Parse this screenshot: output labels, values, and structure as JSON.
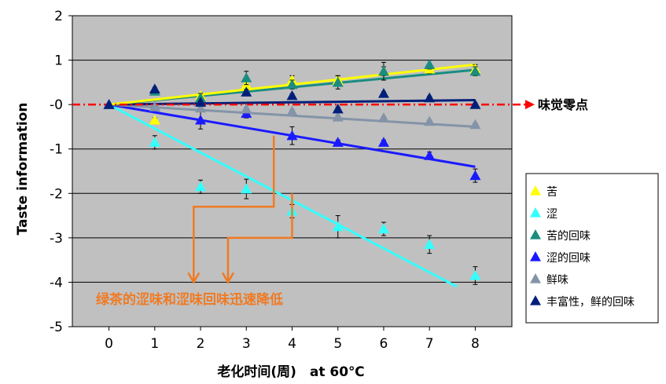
{
  "chart_data": {
    "type": "scatter",
    "ylabel": "Taste information",
    "xlabel": "老化时间(周)　at 60℃",
    "x_ticks": [
      "0",
      "1",
      "2",
      "3",
      "4",
      "5",
      "6",
      "7",
      "8"
    ],
    "y_ticks": [
      "2",
      "1",
      "-0",
      "-1",
      "-2",
      "-3",
      "-4",
      "-5"
    ],
    "xlim": [
      -0.8,
      8.8
    ],
    "ylim": [
      -5,
      2
    ],
    "grid": "horizontal",
    "legend_position": "right",
    "zero_line_label": "味觉零点",
    "annotation": "绿茶的涩味和涩味回味迅速降低",
    "colors": {
      "bitter": "#ffff00",
      "astringent": "#33ffff",
      "bitter_aftertaste": "#1a8c80",
      "astringent_aftertaste": "#1a1aff",
      "umami": "#8494a8",
      "richness": "#001f7a",
      "zero_line": "#ff0000",
      "annotation": "#f07a22",
      "plot_bg": "#c0c0c0"
    },
    "series": [
      {
        "name": "苦",
        "key": "bitter",
        "x": [
          0,
          1,
          2,
          3,
          4,
          5,
          6,
          7,
          8
        ],
        "values": [
          0,
          -0.35,
          0.2,
          0.45,
          0.55,
          0.55,
          0.75,
          0.8,
          0.8
        ],
        "errors": [
          0,
          0.05,
          0.05,
          0.1,
          0.1,
          0.1,
          0.1,
          0.1,
          0.1
        ],
        "trend": [
          0,
          0.9
        ]
      },
      {
        "name": "涩",
        "key": "astringent",
        "x": [
          0,
          1,
          2,
          3,
          4,
          5,
          6,
          7,
          8
        ],
        "values": [
          0,
          -0.85,
          -1.85,
          -1.9,
          -2.4,
          -2.75,
          -2.8,
          -3.15,
          -3.85
        ],
        "errors": [
          0,
          0.15,
          0.15,
          0.22,
          0.15,
          0.25,
          0.15,
          0.2,
          0.2
        ],
        "trend": [
          0,
          -4.1
        ]
      },
      {
        "name": "苦的回味",
        "key": "bitter_aftertaste",
        "x": [
          0,
          1,
          2,
          3,
          4,
          5,
          6,
          7,
          8
        ],
        "values": [
          0,
          0.3,
          0.15,
          0.6,
          0.45,
          0.5,
          0.75,
          0.9,
          0.75
        ],
        "errors": [
          0,
          0.05,
          0.1,
          0.15,
          0.1,
          0.15,
          0.2,
          0.1,
          0.1
        ],
        "trend": [
          0,
          0.78
        ]
      },
      {
        "name": "涩的回味",
        "key": "astringent_aftertaste",
        "x": [
          0,
          1,
          2,
          3,
          4,
          5,
          6,
          7,
          8
        ],
        "values": [
          0,
          -0.05,
          -0.35,
          -0.2,
          -0.7,
          -0.85,
          -0.85,
          -1.15,
          -1.6
        ],
        "errors": [
          0,
          0.05,
          0.2,
          0.1,
          0.2,
          0.05,
          0.05,
          0.08,
          0.15
        ],
        "trend": [
          0,
          -1.4
        ]
      },
      {
        "name": "鲜味",
        "key": "umami",
        "x": [
          0,
          1,
          2,
          3,
          4,
          5,
          6,
          7,
          8
        ],
        "values": [
          0,
          -0.05,
          -0.08,
          -0.1,
          -0.15,
          -0.28,
          -0.3,
          -0.38,
          -0.45
        ],
        "errors": [
          0,
          0.03,
          0.03,
          0.03,
          0.03,
          0.03,
          0.03,
          0.03,
          0.03
        ],
        "trend": [
          0,
          -0.5
        ]
      },
      {
        "name": "丰富性，鲜的回味",
        "key": "richness",
        "x": [
          0,
          1,
          2,
          3,
          4,
          5,
          6,
          7,
          8
        ],
        "values": [
          0,
          0.35,
          0.05,
          0.28,
          0.2,
          -0.1,
          0.25,
          0.15,
          0
        ],
        "errors": [
          0,
          0.04,
          0.04,
          0.04,
          0.04,
          0.04,
          0.04,
          0.04,
          0.04
        ],
        "trend": [
          0,
          0.1
        ]
      }
    ]
  }
}
